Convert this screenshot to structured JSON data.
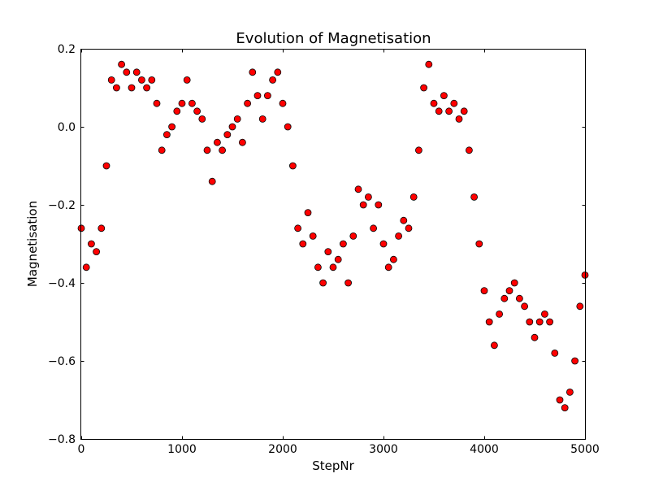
{
  "chart_data": {
    "type": "scatter",
    "title": "Evolution of Magnetisation",
    "xlabel": "StepNr",
    "ylabel": "Magnetisation",
    "xlim": [
      0,
      5000
    ],
    "ylim": [
      -0.8,
      0.2
    ],
    "xticks": [
      0,
      1000,
      2000,
      3000,
      4000,
      5000
    ],
    "xtick_labels": [
      "0",
      "1000",
      "2000",
      "3000",
      "4000",
      "5000"
    ],
    "yticks": [
      -0.8,
      -0.6,
      -0.4,
      -0.2,
      0.0,
      0.2
    ],
    "ytick_labels": [
      "−0.8",
      "−0.6",
      "−0.4",
      "−0.2",
      "0.0",
      "0.2"
    ],
    "grid": false,
    "legend": "none",
    "marker_color": "#ff0000",
    "marker_edge_color": "#000000",
    "series": [
      {
        "x": [
          0,
          50,
          100,
          150,
          200,
          250,
          300,
          350,
          400,
          450,
          500,
          550,
          600,
          650,
          700,
          750,
          800,
          850,
          900,
          950,
          1000,
          1050,
          1100,
          1150,
          1200,
          1250,
          1300,
          1350,
          1400,
          1450,
          1500,
          1550,
          1600,
          1650,
          1700,
          1750,
          1800,
          1850,
          1900,
          1950,
          2000,
          2050,
          2100,
          2150,
          2200,
          2250,
          2300,
          2350,
          2400,
          2450,
          2500,
          2550,
          2600,
          2650,
          2700,
          2750,
          2800,
          2850,
          2900,
          2950,
          3000,
          3050,
          3100,
          3150,
          3200,
          3250,
          3300,
          3350,
          3400,
          3450,
          3500,
          3550,
          3600,
          3650,
          3700,
          3750,
          3800,
          3850,
          3900,
          3950,
          4000,
          4050,
          4100,
          4150,
          4200,
          4250,
          4300,
          4350,
          4400,
          4450,
          4500,
          4550,
          4600,
          4650,
          4700,
          4750,
          4800,
          4850,
          4900,
          4950,
          5000
        ],
        "y": [
          -0.26,
          -0.36,
          -0.3,
          -0.32,
          -0.26,
          -0.1,
          0.12,
          0.1,
          0.16,
          0.14,
          0.1,
          0.14,
          0.12,
          0.1,
          0.12,
          0.06,
          -0.06,
          -0.02,
          0.0,
          0.04,
          0.06,
          0.12,
          0.06,
          0.04,
          0.02,
          -0.06,
          -0.14,
          -0.04,
          -0.06,
          -0.02,
          0.0,
          0.02,
          -0.04,
          0.06,
          0.14,
          0.08,
          0.02,
          0.08,
          0.12,
          0.14,
          0.06,
          0.0,
          -0.1,
          -0.26,
          -0.3,
          -0.22,
          -0.28,
          -0.36,
          -0.4,
          -0.32,
          -0.36,
          -0.34,
          -0.3,
          -0.4,
          -0.28,
          -0.16,
          -0.2,
          -0.18,
          -0.26,
          -0.2,
          -0.3,
          -0.36,
          -0.34,
          -0.28,
          -0.24,
          -0.26,
          -0.18,
          -0.06,
          0.1,
          0.16,
          0.06,
          0.04,
          0.08,
          0.04,
          0.06,
          0.02,
          0.04,
          -0.06,
          -0.18,
          -0.3,
          -0.42,
          -0.5,
          -0.56,
          -0.48,
          -0.44,
          -0.42,
          -0.4,
          -0.44,
          -0.46,
          -0.5,
          -0.54,
          -0.5,
          -0.48,
          -0.5,
          -0.58,
          -0.7,
          -0.72,
          -0.68,
          -0.6,
          -0.46,
          -0.38
        ]
      }
    ]
  }
}
